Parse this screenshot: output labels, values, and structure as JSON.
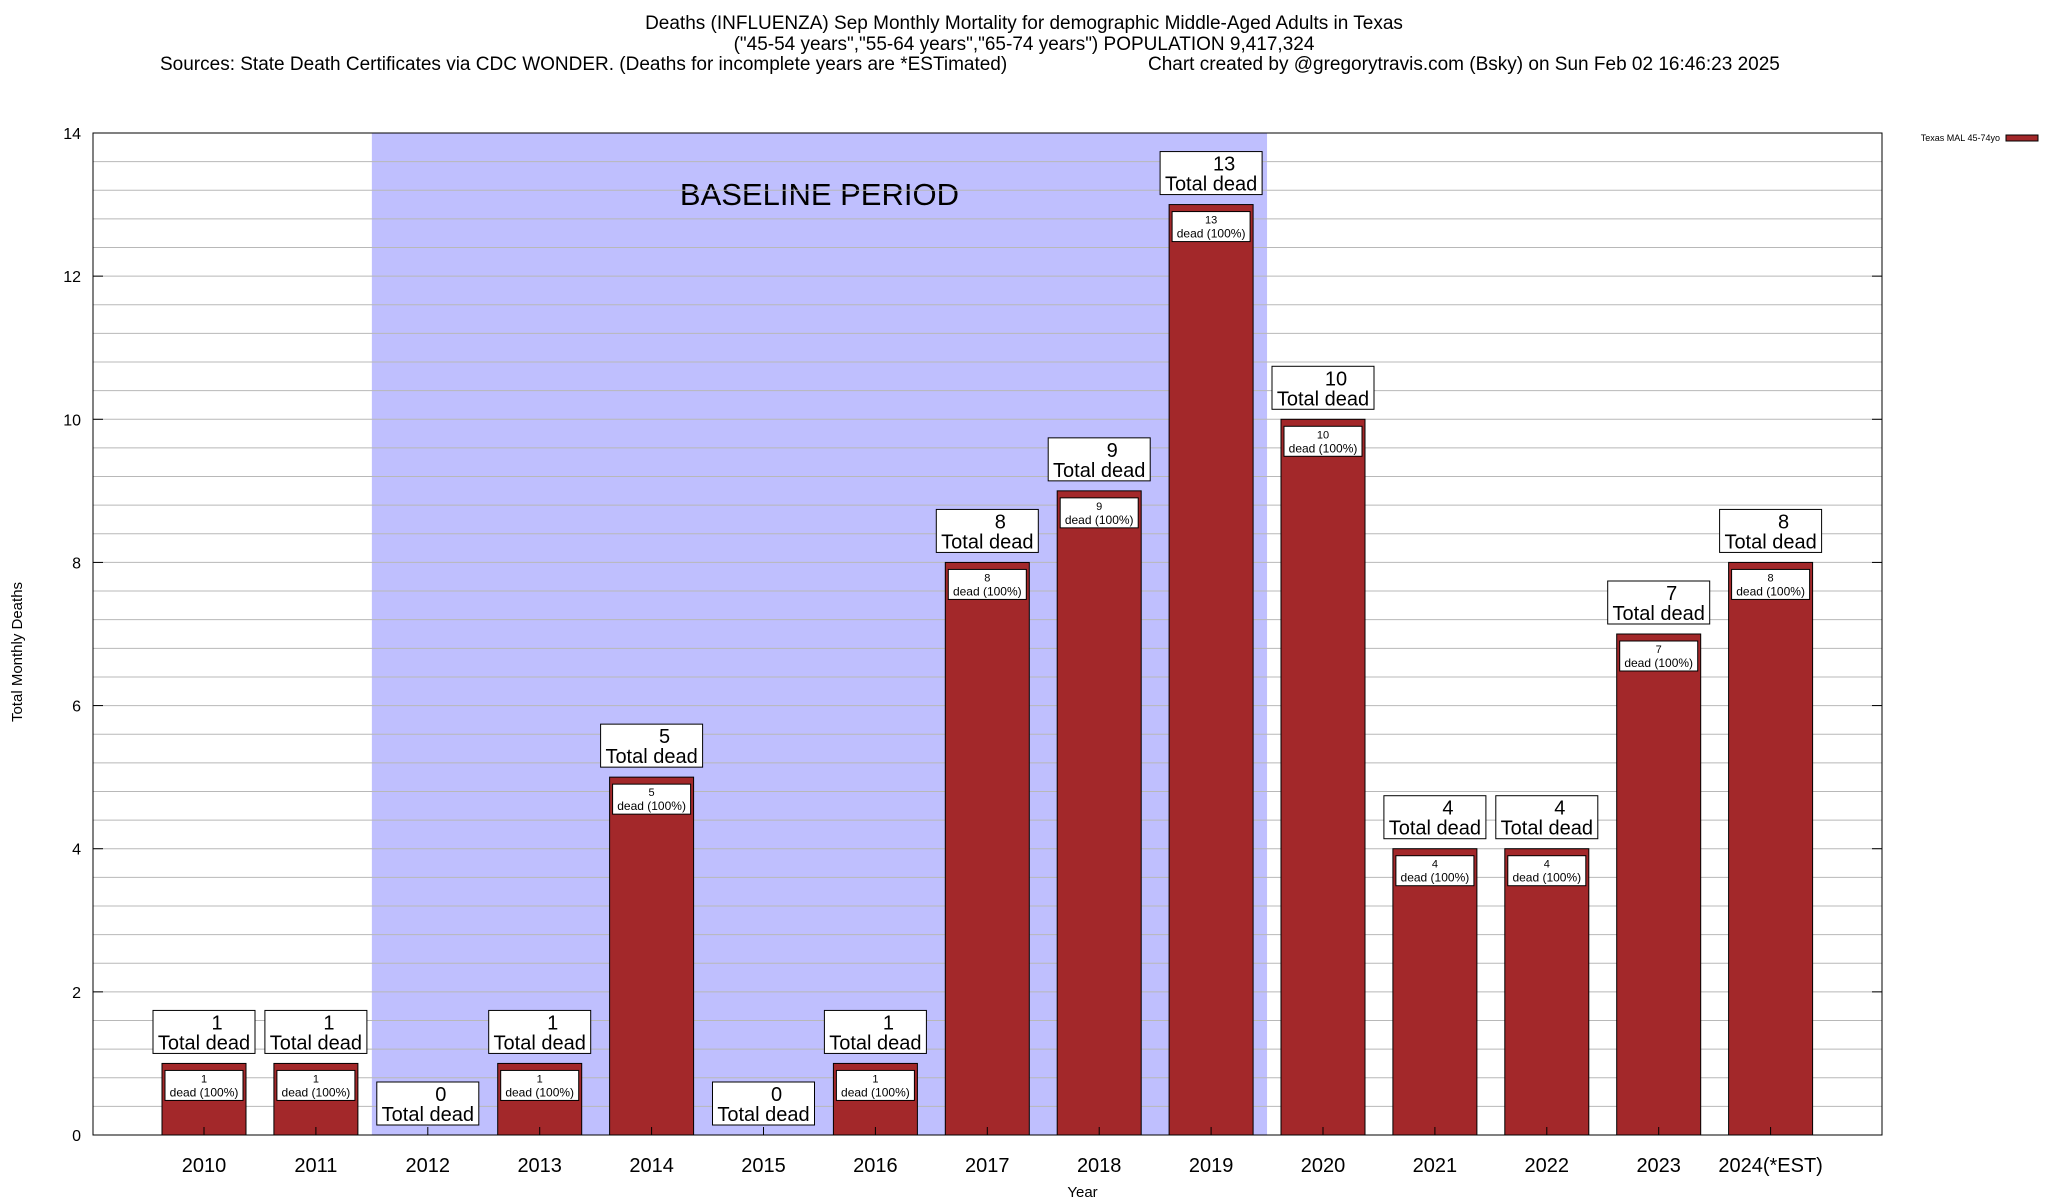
{
  "header": {
    "title_line1": "Deaths (INFLUENZA) Sep Monthly Mortality for demographic Middle-Aged Adults in Texas",
    "title_line2": "(\"45-54 years\",\"55-64 years\",\"65-74 years\") POPULATION 9,417,324",
    "sources": "Sources: State Death Certificates via CDC WONDER. (Deaths for incomplete years are *ESTimated)",
    "credit": "Chart created by @gregorytravis.com (Bsky) on Sun Feb 02 16:46:23 2025"
  },
  "chart_data": {
    "type": "bar",
    "xlabel": "Year",
    "ylabel": "Total Monthly Deaths",
    "ylim": [
      0,
      14
    ],
    "yticks": [
      0,
      2,
      4,
      6,
      8,
      10,
      12,
      14
    ],
    "grid": true,
    "legend_position": "top-right",
    "categories": [
      "2010",
      "2011",
      "2012",
      "2013",
      "2014",
      "2015",
      "2016",
      "2017",
      "2018",
      "2019",
      "2020",
      "2021",
      "2022",
      "2023",
      "2024(*EST)"
    ],
    "series": [
      {
        "name": "Texas MAL 45-74yo",
        "color": "#a3282a",
        "values": [
          1,
          1,
          0,
          1,
          5,
          0,
          1,
          8,
          9,
          13,
          10,
          4,
          4,
          7,
          8
        ]
      }
    ],
    "total_label": "Total dead",
    "bar_label_suffix": "dead (100%)",
    "baseline": {
      "label": "BASELINE PERIOD",
      "start": "2012",
      "end": "2019",
      "color": "#bfbffe"
    }
  }
}
